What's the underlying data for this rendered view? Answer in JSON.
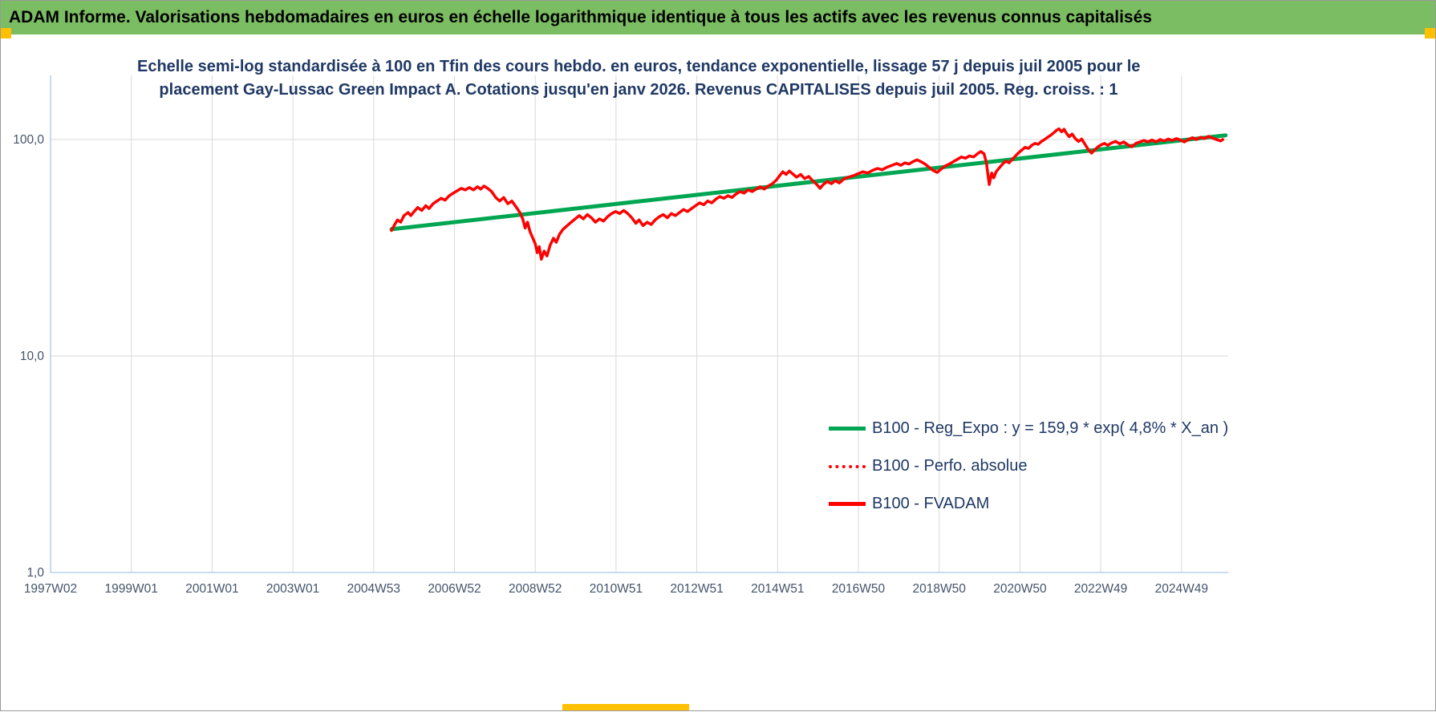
{
  "banner": {
    "title": "ADAM Informe. Valorisations hebdomadaires en euros en échelle logarithmique identique à tous les actifs avec les revenus connus capitalisés",
    "bg": "#7BBD62",
    "accent": "#FFC000"
  },
  "chart_data": {
    "type": "line",
    "title_line1": "Echelle semi-log standardisée à 100 en Tfin des cours hebdo. en euros, tendance exponentielle, lissage 57 j depuis juil 2005 pour le",
    "title_line2": "placement Gay-Lussac Green Impact A. Cotations jusqu'en janv 2026. Revenus CAPITALISES depuis juil 2005. Reg. croiss. : 1",
    "colors": {
      "grid": "#D9D9D9",
      "axis": "#A9C6E8",
      "title": "#1F3864",
      "axis_labels": "#44546A",
      "trend_green": "#00A651",
      "series_red": "#FF0000"
    },
    "y_axis": {
      "scale": "log",
      "ticks": [
        {
          "label": "100,0",
          "value": 100
        },
        {
          "label": "10,0",
          "value": 10
        },
        {
          "label": "1,0",
          "value": 1
        }
      ]
    },
    "x_axis": {
      "ticks": [
        {
          "label": "1997W02",
          "t": 1997.03
        },
        {
          "label": "1999W01",
          "t": 1999.03
        },
        {
          "label": "2001W01",
          "t": 2001.03
        },
        {
          "label": "2003W01",
          "t": 2003.03
        },
        {
          "label": "2004W53",
          "t": 2005.03
        },
        {
          "label": "2006W52",
          "t": 2007.03
        },
        {
          "label": "2008W52",
          "t": 2009.03
        },
        {
          "label": "2010W51",
          "t": 2011.03
        },
        {
          "label": "2012W51",
          "t": 2013.03
        },
        {
          "label": "2014W51",
          "t": 2015.03
        },
        {
          "label": "2016W50",
          "t": 2017.03
        },
        {
          "label": "2018W50",
          "t": 2019.03
        },
        {
          "label": "2020W50",
          "t": 2021.03
        },
        {
          "label": "2022W49",
          "t": 2023.03
        },
        {
          "label": "2024W49",
          "t": 2025.03
        }
      ]
    },
    "series": [
      {
        "name": "B100 - Reg_Expo : y = 159,9 * exp( 4,8% *  X_an )",
        "color": "#00A651",
        "style": "solid",
        "width": 5,
        "points": [
          [
            2005.47,
            38.5
          ],
          [
            2026.12,
            104.5
          ]
        ]
      },
      {
        "name": "B100 - Perfo. absolue",
        "color": "#FF0000",
        "style": "dotted",
        "width": 3.5,
        "points": []
      },
      {
        "name": "B100 - FVADAM",
        "color": "#FF0000",
        "style": "solid",
        "width": 3.5,
        "points": [
          [
            2005.47,
            38
          ],
          [
            2005.55,
            40.5
          ],
          [
            2005.62,
            42.5
          ],
          [
            2005.7,
            41.5
          ],
          [
            2005.78,
            44.5
          ],
          [
            2005.88,
            46
          ],
          [
            2005.95,
            44.5
          ],
          [
            2006.03,
            46.5
          ],
          [
            2006.12,
            48.5
          ],
          [
            2006.22,
            47
          ],
          [
            2006.32,
            49.5
          ],
          [
            2006.4,
            48
          ],
          [
            2006.5,
            50.5
          ],
          [
            2006.6,
            52
          ],
          [
            2006.7,
            53.5
          ],
          [
            2006.8,
            52.5
          ],
          [
            2006.9,
            55
          ],
          [
            2007.0,
            56.5
          ],
          [
            2007.1,
            58
          ],
          [
            2007.2,
            59.5
          ],
          [
            2007.3,
            58.5
          ],
          [
            2007.4,
            60
          ],
          [
            2007.5,
            58.5
          ],
          [
            2007.6,
            60.5
          ],
          [
            2007.68,
            59
          ],
          [
            2007.76,
            61
          ],
          [
            2007.85,
            59.5
          ],
          [
            2007.95,
            57.5
          ],
          [
            2008.05,
            54
          ],
          [
            2008.15,
            52
          ],
          [
            2008.25,
            54
          ],
          [
            2008.35,
            50.5
          ],
          [
            2008.45,
            52
          ],
          [
            2008.55,
            49
          ],
          [
            2008.65,
            46
          ],
          [
            2008.72,
            43
          ],
          [
            2008.78,
            39
          ],
          [
            2008.84,
            41.5
          ],
          [
            2008.9,
            37.5
          ],
          [
            2008.97,
            35
          ],
          [
            2009.03,
            33
          ],
          [
            2009.08,
            30
          ],
          [
            2009.13,
            32
          ],
          [
            2009.18,
            28
          ],
          [
            2009.25,
            30.5
          ],
          [
            2009.32,
            29
          ],
          [
            2009.4,
            32.5
          ],
          [
            2009.48,
            35
          ],
          [
            2009.55,
            33.5
          ],
          [
            2009.63,
            36.5
          ],
          [
            2009.72,
            38.5
          ],
          [
            2009.82,
            40
          ],
          [
            2009.92,
            41.5
          ],
          [
            2010.02,
            43
          ],
          [
            2010.12,
            44.5
          ],
          [
            2010.22,
            43
          ],
          [
            2010.32,
            45
          ],
          [
            2010.42,
            43.5
          ],
          [
            2010.52,
            41.5
          ],
          [
            2010.62,
            43
          ],
          [
            2010.72,
            42
          ],
          [
            2010.82,
            44
          ],
          [
            2010.92,
            45.5
          ],
          [
            2011.02,
            46.5
          ],
          [
            2011.12,
            45.5
          ],
          [
            2011.22,
            47
          ],
          [
            2011.32,
            45.5
          ],
          [
            2011.42,
            43.5
          ],
          [
            2011.52,
            41
          ],
          [
            2011.6,
            42.5
          ],
          [
            2011.7,
            40
          ],
          [
            2011.8,
            41.5
          ],
          [
            2011.9,
            40.5
          ],
          [
            2012.0,
            42.5
          ],
          [
            2012.1,
            44
          ],
          [
            2012.2,
            45
          ],
          [
            2012.3,
            43.5
          ],
          [
            2012.4,
            45.5
          ],
          [
            2012.5,
            44.5
          ],
          [
            2012.6,
            46
          ],
          [
            2012.7,
            47.5
          ],
          [
            2012.8,
            46.5
          ],
          [
            2012.9,
            48
          ],
          [
            2013.0,
            49.5
          ],
          [
            2013.1,
            51
          ],
          [
            2013.2,
            50
          ],
          [
            2013.3,
            52
          ],
          [
            2013.4,
            51
          ],
          [
            2013.5,
            53
          ],
          [
            2013.6,
            54.5
          ],
          [
            2013.7,
            53.5
          ],
          [
            2013.8,
            55
          ],
          [
            2013.9,
            54
          ],
          [
            2014.0,
            56
          ],
          [
            2014.1,
            57.5
          ],
          [
            2014.2,
            56.5
          ],
          [
            2014.3,
            58.5
          ],
          [
            2014.4,
            57.5
          ],
          [
            2014.5,
            59
          ],
          [
            2014.6,
            60.5
          ],
          [
            2014.7,
            59
          ],
          [
            2014.8,
            61
          ],
          [
            2014.9,
            62.5
          ],
          [
            2015.0,
            65
          ],
          [
            2015.08,
            68
          ],
          [
            2015.16,
            71
          ],
          [
            2015.24,
            69
          ],
          [
            2015.32,
            71.5
          ],
          [
            2015.4,
            69.5
          ],
          [
            2015.5,
            67
          ],
          [
            2015.6,
            69
          ],
          [
            2015.7,
            66
          ],
          [
            2015.8,
            67.5
          ],
          [
            2015.9,
            64.5
          ],
          [
            2016.0,
            62
          ],
          [
            2016.08,
            59.5
          ],
          [
            2016.16,
            62
          ],
          [
            2016.26,
            64
          ],
          [
            2016.36,
            62.5
          ],
          [
            2016.46,
            64.5
          ],
          [
            2016.56,
            63
          ],
          [
            2016.66,
            65.5
          ],
          [
            2016.78,
            67
          ],
          [
            2016.9,
            68
          ],
          [
            2017.02,
            69.5
          ],
          [
            2017.14,
            71
          ],
          [
            2017.26,
            70
          ],
          [
            2017.38,
            72
          ],
          [
            2017.5,
            73.5
          ],
          [
            2017.62,
            72.5
          ],
          [
            2017.74,
            74.5
          ],
          [
            2017.86,
            76
          ],
          [
            2017.98,
            77.5
          ],
          [
            2018.08,
            76
          ],
          [
            2018.18,
            78
          ],
          [
            2018.28,
            77
          ],
          [
            2018.38,
            79
          ],
          [
            2018.48,
            80.5
          ],
          [
            2018.58,
            79
          ],
          [
            2018.68,
            77
          ],
          [
            2018.78,
            74.5
          ],
          [
            2018.88,
            72
          ],
          [
            2018.98,
            70.5
          ],
          [
            2019.08,
            73
          ],
          [
            2019.18,
            75.5
          ],
          [
            2019.28,
            77
          ],
          [
            2019.38,
            79
          ],
          [
            2019.48,
            81
          ],
          [
            2019.58,
            83
          ],
          [
            2019.68,
            82
          ],
          [
            2019.78,
            84
          ],
          [
            2019.88,
            83
          ],
          [
            2019.98,
            86
          ],
          [
            2020.06,
            88
          ],
          [
            2020.14,
            86
          ],
          [
            2020.2,
            78
          ],
          [
            2020.27,
            62
          ],
          [
            2020.33,
            70
          ],
          [
            2020.38,
            66.5
          ],
          [
            2020.44,
            71
          ],
          [
            2020.52,
            74
          ],
          [
            2020.6,
            77
          ],
          [
            2020.68,
            79.5
          ],
          [
            2020.76,
            78
          ],
          [
            2020.84,
            81
          ],
          [
            2020.92,
            84
          ],
          [
            2021.0,
            87
          ],
          [
            2021.08,
            89.5
          ],
          [
            2021.16,
            92
          ],
          [
            2021.24,
            91
          ],
          [
            2021.32,
            94
          ],
          [
            2021.4,
            96
          ],
          [
            2021.48,
            95
          ],
          [
            2021.56,
            98
          ],
          [
            2021.64,
            100
          ],
          [
            2021.72,
            102.5
          ],
          [
            2021.8,
            105
          ],
          [
            2021.88,
            108
          ],
          [
            2021.94,
            110.5
          ],
          [
            2022.0,
            112
          ],
          [
            2022.06,
            108.5
          ],
          [
            2022.12,
            111.5
          ],
          [
            2022.18,
            107
          ],
          [
            2022.25,
            103
          ],
          [
            2022.32,
            106
          ],
          [
            2022.4,
            101
          ],
          [
            2022.48,
            98
          ],
          [
            2022.56,
            100.5
          ],
          [
            2022.64,
            95
          ],
          [
            2022.72,
            90
          ],
          [
            2022.8,
            86.5
          ],
          [
            2022.88,
            89.5
          ],
          [
            2022.96,
            92.5
          ],
          [
            2023.04,
            94.5
          ],
          [
            2023.12,
            96
          ],
          [
            2023.2,
            94
          ],
          [
            2023.3,
            96.5
          ],
          [
            2023.4,
            98
          ],
          [
            2023.5,
            95.5
          ],
          [
            2023.6,
            97.5
          ],
          [
            2023.7,
            94.5
          ],
          [
            2023.8,
            92.5
          ],
          [
            2023.9,
            96
          ],
          [
            2024.0,
            97.5
          ],
          [
            2024.1,
            99
          ],
          [
            2024.2,
            97.5
          ],
          [
            2024.3,
            99.5
          ],
          [
            2024.4,
            97.5
          ],
          [
            2024.5,
            100
          ],
          [
            2024.6,
            98.5
          ],
          [
            2024.7,
            100.5
          ],
          [
            2024.8,
            99
          ],
          [
            2024.9,
            101
          ],
          [
            2025.0,
            99.5
          ],
          [
            2025.1,
            97.5
          ],
          [
            2025.2,
            100
          ],
          [
            2025.3,
            102
          ],
          [
            2025.4,
            100
          ],
          [
            2025.5,
            102.5
          ],
          [
            2025.6,
            101
          ],
          [
            2025.7,
            103.5
          ],
          [
            2025.8,
            101.5
          ],
          [
            2025.9,
            100
          ],
          [
            2026.0,
            98.5
          ],
          [
            2026.05,
            100
          ]
        ]
      }
    ],
    "legend": {
      "position": "right-center",
      "items": [
        "B100 - Reg_Expo : y = 159,9 * exp( 4,8% *  X_an )",
        "B100 - Perfo. absolue",
        "B100 - FVADAM"
      ]
    }
  }
}
